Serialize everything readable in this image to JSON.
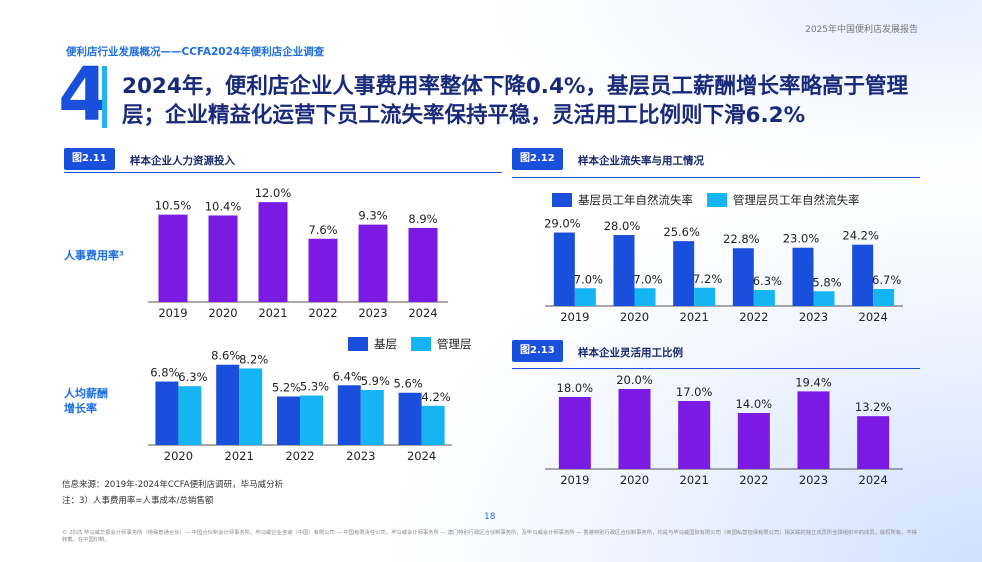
{
  "report_title": "2025年中国便利店发展报告",
  "section_title": "便利店行业发展概况——CCFA2024年便利店企业调查",
  "chapter_number": "4",
  "headline": "2024年，便利店企业人事费用率整体下降0.4%，基层员工薪酬增长率略高于管理层；企业精益化运营下员工流失率保持平稳，灵活用工比例则下滑6.2%",
  "colors": {
    "purple": "#7a1ae3",
    "blue": "#1a4fdb",
    "cyan": "#14b5f2",
    "accent": "#1f6fe0"
  },
  "fig211": {
    "label": "图2.11",
    "title": "样本企业人力资源投入"
  },
  "fig212": {
    "label": "图2.12",
    "title": "样本企业流失率与用工情况"
  },
  "fig213": {
    "label": "图2.13",
    "title": "样本企业灵活用工比例"
  },
  "side_labels": {
    "personnel_rate": "人事费用率³",
    "salary_growth_1": "人均薪酬",
    "salary_growth_2": "增长率"
  },
  "legend_salary": {
    "base": "基层",
    "mgmt": "管理层"
  },
  "legend_turnover": {
    "base": "基层员工年自然流失率",
    "mgmt": "管理层员工年自然流失率"
  },
  "source_note": "信息来源：2019年-2024年CCFA便利店调研，毕马威分析",
  "footnote": "注：3）人事费用率=人事成本/总销售额",
  "page_number": "18",
  "footer": "© 2025 毕马威华振会计师事务所（特殊普通合伙）— 中国合伙制会计师事务所，毕马威企业咨询（中国）有限公司 — 中国有限责任公司，毕马威会计师事务所 — 澳门特别行政区合伙制事务所，及毕马威会计师事务所 — 香港特别行政区合伙制事务所，均是与毕马威国际有限公司（英国私营担保有限公司）相关联的独立成员所全球组织中的成员。版权所有，不得转载。在中国印制。",
  "chart_data": [
    {
      "id": "personnel_cost_rate",
      "type": "bar",
      "title": "人事费用率³",
      "categories": [
        "2019",
        "2020",
        "2021",
        "2022",
        "2023",
        "2024"
      ],
      "values": [
        10.5,
        10.4,
        12.0,
        7.6,
        9.3,
        8.9
      ],
      "labels": [
        "10.5%",
        "10.4%",
        "12.0%",
        "7.6%",
        "9.3%",
        "8.9%"
      ],
      "ylim": [
        0,
        12.5
      ]
    },
    {
      "id": "salary_growth",
      "type": "bar",
      "title": "人均薪酬增长率",
      "categories": [
        "2020",
        "2021",
        "2022",
        "2023",
        "2024"
      ],
      "series": [
        {
          "name": "基层",
          "values": [
            6.8,
            8.6,
            5.2,
            6.4,
            5.6
          ],
          "labels": [
            "6.8%",
            "8.6%",
            "5.2%",
            "6.4%",
            "5.6%"
          ]
        },
        {
          "name": "管理层",
          "values": [
            6.3,
            8.2,
            5.3,
            5.9,
            4.2
          ],
          "labels": [
            "6.3%",
            "8.2%",
            "5.3%",
            "5.9%",
            "4.2%"
          ]
        }
      ],
      "ylim": [
        0,
        9.0
      ]
    },
    {
      "id": "turnover_rate",
      "type": "bar",
      "title": "样本企业流失率与用工情况",
      "categories": [
        "2019",
        "2020",
        "2021",
        "2022",
        "2023",
        "2024"
      ],
      "series": [
        {
          "name": "基层员工年自然流失率",
          "values": [
            29.0,
            28.0,
            25.6,
            22.8,
            23.0,
            24.2
          ],
          "labels": [
            "29.0%",
            "28.0%",
            "25.6%",
            "22.8%",
            "23.0%",
            "24.2%"
          ]
        },
        {
          "name": "管理层员工年自然流失率",
          "values": [
            7.0,
            7.0,
            7.2,
            6.3,
            5.8,
            6.7
          ],
          "labels": [
            "7.0%",
            "7.0%",
            "7.2%",
            "6.3%",
            "5.8%",
            "6.7%"
          ]
        }
      ],
      "ylim": [
        0,
        30
      ]
    },
    {
      "id": "flexible_employment",
      "type": "bar",
      "title": "样本企业灵活用工比例",
      "categories": [
        "2019",
        "2020",
        "2021",
        "2022",
        "2023",
        "2024"
      ],
      "values": [
        18.0,
        20.0,
        17.0,
        14.0,
        19.4,
        13.2
      ],
      "labels": [
        "18.0%",
        "20.0%",
        "17.0%",
        "14.0%",
        "19.4%",
        "13.2%"
      ],
      "ylim": [
        0,
        21
      ]
    }
  ]
}
